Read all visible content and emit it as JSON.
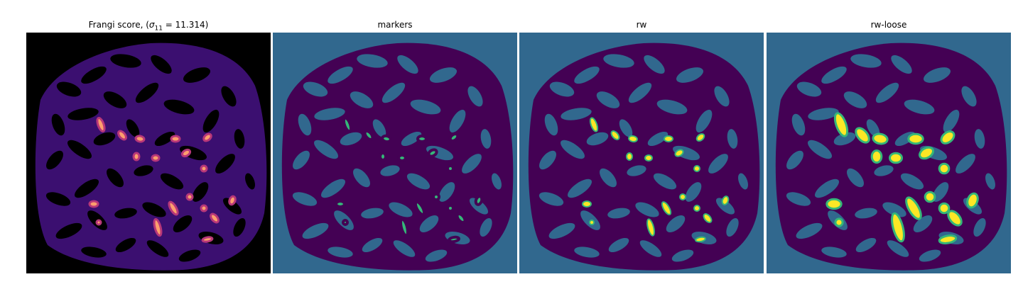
{
  "panels": [
    {
      "title_prefix": "Frangi score, (",
      "title_symbol": "σ",
      "title_sub": "11",
      "title_suffix": " = 11.314)",
      "colormap": "magma"
    },
    {
      "title": "markers",
      "colormap": "viridis"
    },
    {
      "title": "rw",
      "colormap": "viridis"
    },
    {
      "title": "rw-loose",
      "colormap": "viridis"
    }
  ],
  "colors": {
    "background_label": "#31688e",
    "vessel_label": "#440154",
    "marker_label": "#35b779",
    "segment_label": "#fde725",
    "frangi_bg": "#000000",
    "frangi_low": "#3b0f70",
    "frangi_mid": "#8c2981",
    "frangi_high": "#fe9f6d"
  }
}
